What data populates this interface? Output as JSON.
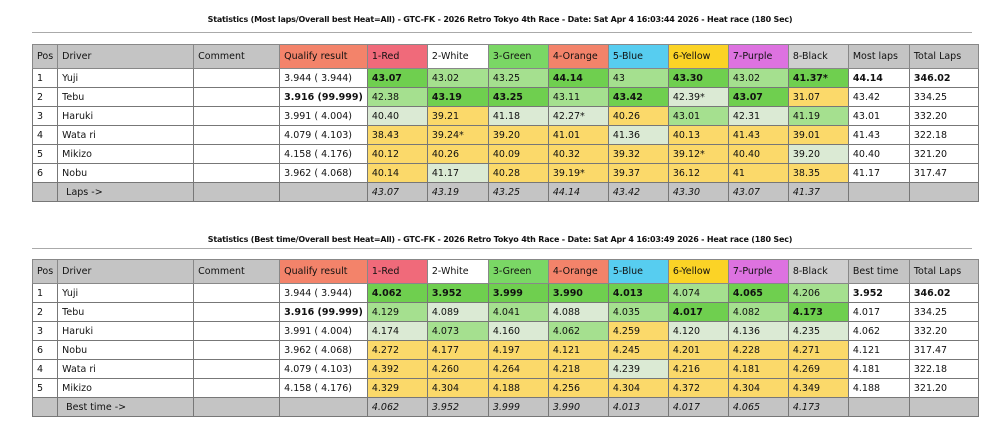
{
  "colors": {
    "red": "#f06a7a",
    "white": "#ffffff",
    "green": "#7ad765",
    "orange": "#f3836a",
    "blue": "#57cdf0",
    "yellow": "#fbd326",
    "purple": "#dd72e0",
    "black": "#cfcfcf",
    "qualify": "#f3836a"
  },
  "tables": [
    {
      "title": "Statistics (Most laps/Overall best Heat=All) - GTC-FK - 2026 Retro Tokyo 4th Race - Date: Sat Apr  4 16:03:44 2026 - Heat race (180 Sec)",
      "headers": [
        "Pos",
        "Driver",
        "Comment",
        "Qualify result",
        "1-Red",
        "2-White",
        "3-Green",
        "4-Orange",
        "5-Blue",
        "6-Yellow",
        "7-Purple",
        "8-Black",
        "Most laps",
        "Total Laps"
      ],
      "rows": [
        {
          "pos": "1",
          "driver": "Yuji",
          "comment": "",
          "qualify": "3.944 ( 3.944)",
          "cells": [
            "43.07",
            "43.02",
            "43.25",
            "44.14",
            "43",
            "43.30",
            "43.02",
            "41.37*"
          ],
          "shade": [
            "D",
            "L",
            "L",
            "D",
            "L",
            "D",
            "L",
            "D"
          ],
          "stat": "44.14",
          "total": "346.02",
          "bold": [
            false,
            true,
            true
          ]
        },
        {
          "pos": "2",
          "driver": "Tebu",
          "comment": "",
          "qualify": "3.916 (99.999)",
          "cells": [
            "42.38",
            "43.19",
            "43.25",
            "43.11",
            "43.42",
            "42.39*",
            "43.07",
            "31.07"
          ],
          "shade": [
            "L",
            "D",
            "D",
            "L",
            "D",
            "P",
            "D",
            "Y"
          ],
          "stat": "43.42",
          "total": "334.25",
          "bold": [
            true,
            false,
            false
          ]
        },
        {
          "pos": "3",
          "driver": "Haruki",
          "comment": "",
          "qualify": "3.991 ( 4.004)",
          "cells": [
            "40.40",
            "39.21",
            "41.18",
            "42.27*",
            "40.26",
            "43.01",
            "42.31",
            "41.19"
          ],
          "shade": [
            "P",
            "Y",
            "P",
            "P",
            "Y",
            "L",
            "P",
            "L"
          ],
          "stat": "43.01",
          "total": "332.20",
          "bold": [
            false,
            false,
            false
          ]
        },
        {
          "pos": "4",
          "driver": "Wata ri",
          "comment": "",
          "qualify": "4.079 ( 4.103)",
          "cells": [
            "38.43",
            "39.24*",
            "39.20",
            "41.01",
            "41.36",
            "40.13",
            "41.43",
            "39.01"
          ],
          "shade": [
            "Y",
            "Y",
            "Y",
            "Y",
            "P",
            "Y",
            "Y",
            "Y"
          ],
          "stat": "41.43",
          "total": "322.18",
          "bold": [
            false,
            false,
            false
          ]
        },
        {
          "pos": "5",
          "driver": "Mikizo",
          "comment": "",
          "qualify": "4.158 ( 4.176)",
          "cells": [
            "40.12",
            "40.26",
            "40.09",
            "40.32",
            "39.32",
            "39.12*",
            "40.40",
            "39.20"
          ],
          "shade": [
            "Y",
            "Y",
            "Y",
            "Y",
            "Y",
            "Y",
            "Y",
            "P"
          ],
          "stat": "40.40",
          "total": "321.20",
          "bold": [
            false,
            false,
            false
          ]
        },
        {
          "pos": "6",
          "driver": "Nobu",
          "comment": "",
          "qualify": "3.962 ( 4.068)",
          "cells": [
            "40.14",
            "41.17",
            "40.28",
            "39.19*",
            "39.37",
            "36.12",
            "41",
            "38.35"
          ],
          "shade": [
            "Y",
            "P",
            "Y",
            "Y",
            "Y",
            "Y",
            "Y",
            "Y"
          ],
          "stat": "41.17",
          "total": "317.47",
          "bold": [
            false,
            false,
            false
          ]
        }
      ],
      "footer": {
        "label": "Laps ->",
        "values": [
          "43.07",
          "43.19",
          "43.25",
          "44.14",
          "43.42",
          "43.30",
          "43.07",
          "41.37"
        ]
      }
    },
    {
      "title": "Statistics (Best time/Overall best Heat=All) - GTC-FK - 2026 Retro Tokyo 4th Race - Date: Sat Apr  4 16:03:49 2026 - Heat race (180 Sec)",
      "headers": [
        "Pos",
        "Driver",
        "Comment",
        "Qualify result",
        "1-Red",
        "2-White",
        "3-Green",
        "4-Orange",
        "5-Blue",
        "6-Yellow",
        "7-Purple",
        "8-Black",
        "Best time",
        "Total Laps"
      ],
      "rows": [
        {
          "pos": "1",
          "driver": "Yuji",
          "comment": "",
          "qualify": "3.944 ( 3.944)",
          "cells": [
            "4.062",
            "3.952",
            "3.999",
            "3.990",
            "4.013",
            "4.074",
            "4.065",
            "4.206"
          ],
          "shade": [
            "D",
            "D",
            "D",
            "D",
            "D",
            "L",
            "D",
            "L"
          ],
          "stat": "3.952",
          "total": "346.02",
          "bold": [
            false,
            true,
            true
          ]
        },
        {
          "pos": "2",
          "driver": "Tebu",
          "comment": "",
          "qualify": "3.916 (99.999)",
          "cells": [
            "4.129",
            "4.089",
            "4.041",
            "4.088",
            "4.035",
            "4.017",
            "4.082",
            "4.173"
          ],
          "shade": [
            "L",
            "P",
            "L",
            "P",
            "L",
            "D",
            "L",
            "D"
          ],
          "stat": "4.017",
          "total": "334.25",
          "bold": [
            true,
            false,
            false
          ]
        },
        {
          "pos": "3",
          "driver": "Haruki",
          "comment": "",
          "qualify": "3.991 ( 4.004)",
          "cells": [
            "4.174",
            "4.073",
            "4.160",
            "4.062",
            "4.259",
            "4.120",
            "4.136",
            "4.235"
          ],
          "shade": [
            "P",
            "L",
            "P",
            "L",
            "Y",
            "P",
            "P",
            "P"
          ],
          "stat": "4.062",
          "total": "332.20",
          "bold": [
            false,
            false,
            false
          ]
        },
        {
          "pos": "6",
          "driver": "Nobu",
          "comment": "",
          "qualify": "3.962 ( 4.068)",
          "cells": [
            "4.272",
            "4.177",
            "4.197",
            "4.121",
            "4.245",
            "4.201",
            "4.228",
            "4.271"
          ],
          "shade": [
            "Y",
            "Y",
            "Y",
            "Y",
            "Y",
            "Y",
            "Y",
            "Y"
          ],
          "stat": "4.121",
          "total": "317.47",
          "bold": [
            false,
            false,
            false
          ]
        },
        {
          "pos": "4",
          "driver": "Wata ri",
          "comment": "",
          "qualify": "4.079 ( 4.103)",
          "cells": [
            "4.392",
            "4.260",
            "4.264",
            "4.218",
            "4.239",
            "4.216",
            "4.181",
            "4.269"
          ],
          "shade": [
            "Y",
            "Y",
            "Y",
            "Y",
            "P",
            "Y",
            "Y",
            "Y"
          ],
          "stat": "4.181",
          "total": "322.18",
          "bold": [
            false,
            false,
            false
          ]
        },
        {
          "pos": "5",
          "driver": "Mikizo",
          "comment": "",
          "qualify": "4.158 ( 4.176)",
          "cells": [
            "4.329",
            "4.304",
            "4.188",
            "4.256",
            "4.304",
            "4.372",
            "4.304",
            "4.349"
          ],
          "shade": [
            "Y",
            "Y",
            "Y",
            "Y",
            "Y",
            "Y",
            "Y",
            "Y"
          ],
          "stat": "4.188",
          "total": "321.20",
          "bold": [
            false,
            false,
            false
          ]
        }
      ],
      "footer": {
        "label": "Best time ->",
        "values": [
          "4.062",
          "3.952",
          "3.999",
          "3.990",
          "4.013",
          "4.017",
          "4.065",
          "4.173"
        ]
      }
    }
  ]
}
